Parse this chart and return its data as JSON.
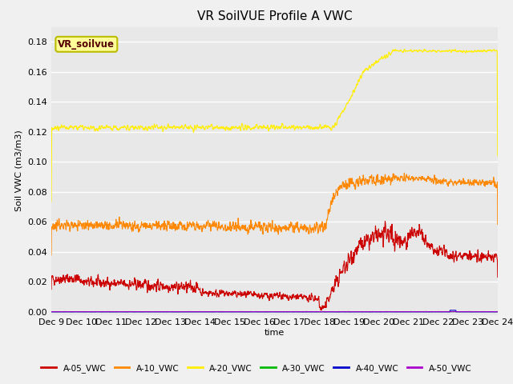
{
  "title": "VR SoilVUE Profile A VWC",
  "ylabel": "Soil VWC (m3/m3)",
  "xlabel": "time",
  "ylim": [
    -0.002,
    0.19
  ],
  "yticks": [
    0.0,
    0.02,
    0.04,
    0.06,
    0.08,
    0.1,
    0.12,
    0.14,
    0.16,
    0.18
  ],
  "x_tick_labels": [
    "Dec 9",
    "Dec 10",
    "Dec 11",
    "Dec 12",
    "Dec 13",
    "Dec 14",
    "Dec 15",
    "Dec 16",
    "Dec 17",
    "Dec 18",
    "Dec 19",
    "Dec 20",
    "Dec 21",
    "Dec 22",
    "Dec 23",
    "Dec 24"
  ],
  "watermark_text": "VR_soilvue",
  "watermark_bg": "#ffff99",
  "watermark_border": "#bbbb00",
  "fig_bg_color": "#f0f0f0",
  "plot_bg_color": "#e8e8e8",
  "grid_color": "#ffffff",
  "series": [
    {
      "label": "A-05_VWC",
      "color": "#cc0000",
      "linewidth": 0.8
    },
    {
      "label": "A-10_VWC",
      "color": "#ff8800",
      "linewidth": 0.8
    },
    {
      "label": "A-20_VWC",
      "color": "#ffee00",
      "linewidth": 0.8
    },
    {
      "label": "A-30_VWC",
      "color": "#00bb00",
      "linewidth": 0.8
    },
    {
      "label": "A-40_VWC",
      "color": "#0000cc",
      "linewidth": 0.8
    },
    {
      "label": "A-50_VWC",
      "color": "#aa00cc",
      "linewidth": 0.8
    }
  ],
  "legend_ncol": 6,
  "title_fontsize": 11
}
